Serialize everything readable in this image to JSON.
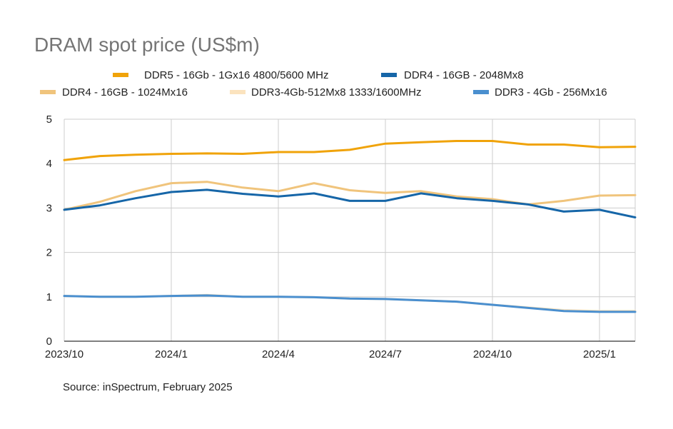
{
  "chart_data": {
    "type": "line",
    "title": "DRAM spot price (US$m)",
    "xlabel": "",
    "ylabel": "",
    "x": [
      "2023/10",
      "2023/11",
      "2023/12",
      "2024/1",
      "2024/2",
      "2024/3",
      "2024/4",
      "2024/5",
      "2024/6",
      "2024/7",
      "2024/8",
      "2024/9",
      "2024/10",
      "2024/11",
      "2024/12",
      "2025/1",
      "2025/2"
    ],
    "x_tick_labels": [
      "2023/10",
      "2024/1",
      "2024/4",
      "2024/7",
      "2024/10",
      "2025/1"
    ],
    "y_tick_labels": [
      "0",
      "1",
      "2",
      "3",
      "4",
      "5"
    ],
    "ylim": [
      0,
      5
    ],
    "grid": true,
    "legend_position": "top",
    "series": [
      {
        "name": "DDR5 - 16Gb - 1Gx16 4800/5600 MHz",
        "color": "#F0A30A",
        "values": [
          4.08,
          4.17,
          4.2,
          4.22,
          4.23,
          4.22,
          4.26,
          4.26,
          4.31,
          4.45,
          4.48,
          4.51,
          4.51,
          4.43,
          4.43,
          4.37,
          4.38
        ]
      },
      {
        "name": "DDR4 - 16GB - 2048Mx8",
        "color": "#1666A8",
        "values": [
          2.96,
          3.06,
          3.22,
          3.36,
          3.41,
          3.32,
          3.26,
          3.33,
          3.16,
          3.16,
          3.33,
          3.22,
          3.16,
          3.08,
          2.92,
          2.96,
          2.79
        ]
      },
      {
        "name": "DDR4 - 16GB - 1024Mx16",
        "color": "#F0C47C",
        "values": [
          2.96,
          3.14,
          3.38,
          3.56,
          3.59,
          3.46,
          3.38,
          3.56,
          3.4,
          3.34,
          3.38,
          3.26,
          3.2,
          3.08,
          3.16,
          3.28,
          3.29
        ]
      },
      {
        "name": "DDR3-4Gb-512Mx8 1333/1600MHz",
        "color": "#FBE3BE",
        "values": [
          1.02,
          1.0,
          1.0,
          1.02,
          1.04,
          1.0,
          1.0,
          0.99,
          0.96,
          0.95,
          0.92,
          0.89,
          0.82,
          0.76,
          0.7,
          0.68,
          0.68
        ]
      },
      {
        "name": "DDR3 - 4Gb - 256Mx16",
        "color": "#4A8FCF",
        "values": [
          1.02,
          1.0,
          1.0,
          1.02,
          1.03,
          1.0,
          1.0,
          0.99,
          0.96,
          0.95,
          0.92,
          0.89,
          0.82,
          0.75,
          0.68,
          0.66,
          0.66
        ]
      }
    ],
    "source": "Source: inSpectrum, February 2025"
  }
}
